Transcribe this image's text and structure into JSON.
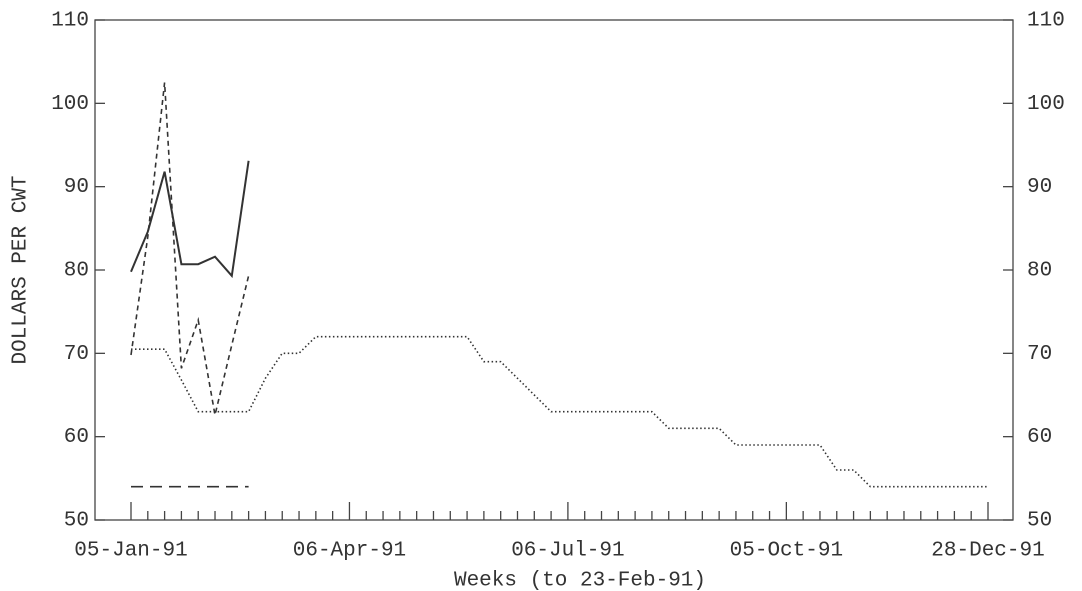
{
  "chart_data": {
    "type": "line",
    "x_label": "Weeks (to 23-Feb-91)",
    "y_label": "DOLLARS PER CWT",
    "categories": [
      "05-Jan-91",
      null,
      null,
      null,
      null,
      null,
      null,
      null,
      null,
      null,
      null,
      null,
      null,
      "06-Apr-91",
      null,
      null,
      null,
      null,
      null,
      null,
      null,
      null,
      null,
      null,
      null,
      null,
      "06-Jul-91",
      null,
      null,
      null,
      null,
      null,
      null,
      null,
      null,
      null,
      null,
      null,
      null,
      "05-Oct-91",
      null,
      null,
      null,
      null,
      null,
      null,
      null,
      null,
      null,
      null,
      null,
      "28-Dec-91"
    ],
    "series": [
      {
        "color": "#333333",
        "style": "solid",
        "values": [
          79.8,
          84.6,
          91.8,
          80.7,
          80.7,
          81.6,
          79.3,
          93.1,
          null,
          null,
          null,
          null,
          null,
          null,
          null,
          null,
          null,
          null,
          null,
          null,
          null,
          null,
          null,
          null,
          null,
          null,
          null,
          null,
          null,
          null,
          null,
          null,
          null,
          null,
          null,
          null,
          null,
          null,
          null,
          null,
          null,
          null,
          null,
          null,
          null,
          null,
          null,
          null,
          null,
          null,
          null,
          null
        ]
      },
      {
        "color": "#333333",
        "style": "dashed",
        "values": [
          69.8,
          84,
          102.5,
          68.2,
          74,
          62.6,
          71,
          79.3,
          null,
          null,
          null,
          null,
          null,
          null,
          null,
          null,
          null,
          null,
          null,
          null,
          null,
          null,
          null,
          null,
          null,
          null,
          null,
          null,
          null,
          null,
          null,
          null,
          null,
          null,
          null,
          null,
          null,
          null,
          null,
          null,
          null,
          null,
          null,
          null,
          null,
          null,
          null,
          null,
          null,
          null,
          null,
          null
        ]
      },
      {
        "color": "#333333",
        "style": "longdash",
        "values": [
          54,
          54,
          54,
          54,
          54,
          54,
          54,
          54,
          null,
          null,
          null,
          null,
          null,
          null,
          null,
          null,
          null,
          null,
          null,
          null,
          null,
          null,
          null,
          null,
          null,
          null,
          null,
          null,
          null,
          null,
          null,
          null,
          null,
          null,
          null,
          null,
          null,
          null,
          null,
          null,
          null,
          null,
          null,
          null,
          null,
          null,
          null,
          null,
          null,
          null,
          null,
          null
        ]
      },
      {
        "color": "#333333",
        "style": "dotted",
        "values": [
          70.5,
          70.5,
          70.5,
          66.8,
          63,
          63,
          63,
          63,
          67,
          70,
          70,
          72,
          72,
          72,
          72,
          72,
          72,
          72,
          72,
          72,
          72,
          69,
          69,
          67,
          65,
          63,
          63,
          63,
          63,
          63,
          63,
          63,
          61,
          61,
          61,
          61,
          59,
          59,
          59,
          59,
          59,
          59,
          56,
          56,
          54,
          54,
          54,
          54,
          54,
          54,
          54,
          54
        ]
      }
    ],
    "ylim": [
      50,
      110
    ],
    "yticks": [
      50,
      60,
      70,
      80,
      90,
      100,
      110
    ],
    "grid": false
  }
}
